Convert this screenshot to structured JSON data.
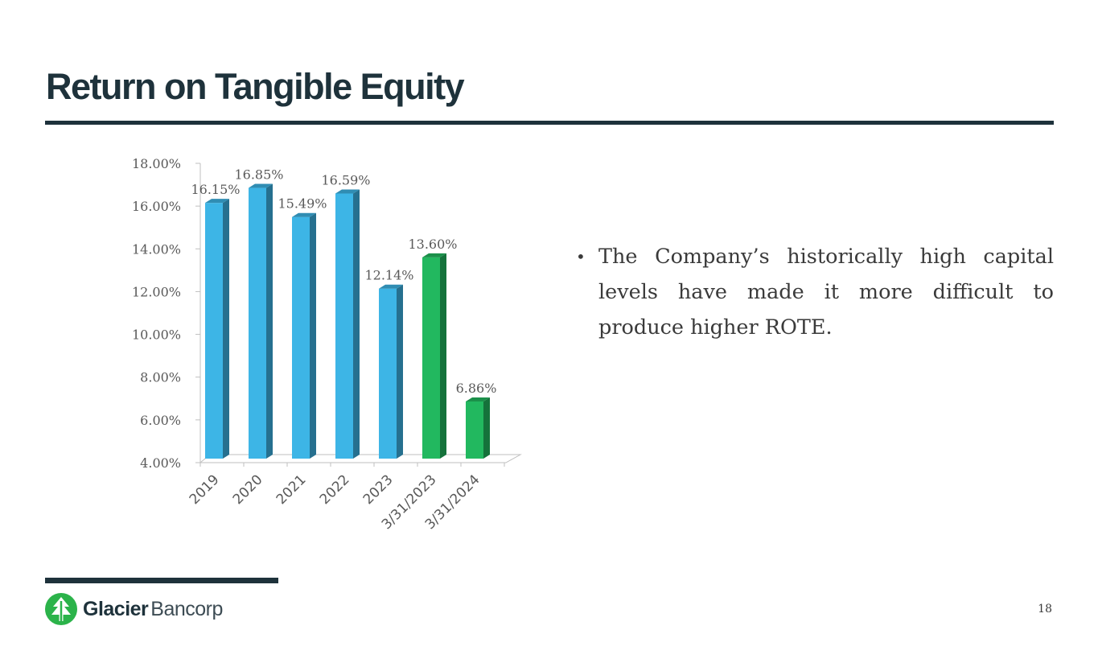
{
  "slide": {
    "title": "Return on Tangible Equity",
    "bullet": "The Company’s historically high capital levels have made it more difficult to produce higher ROTE.",
    "page_number": "18"
  },
  "logo": {
    "brand_bold": "Glacier",
    "brand_light": "Bancorp",
    "icon": "glacier-tree-logo-icon",
    "color": "#2bb34a"
  },
  "colors": {
    "title": "#1e323b",
    "bar_blue": "#3db5e6",
    "bar_green": "#22b85f",
    "text": "#3a3a3a"
  },
  "chart_data": {
    "type": "bar",
    "categories": [
      "2019",
      "2020",
      "2021",
      "2022",
      "2023",
      "3/31/2023",
      "3/31/2024"
    ],
    "values": [
      16.15,
      16.85,
      15.49,
      16.59,
      12.14,
      13.6,
      6.86
    ],
    "data_labels": [
      "16.15%",
      "16.85%",
      "15.49%",
      "16.59%",
      "12.14%",
      "13.60%",
      "6.86%"
    ],
    "bar_colors": [
      "blue",
      "blue",
      "blue",
      "blue",
      "blue",
      "green",
      "green"
    ],
    "ylim": [
      4,
      18
    ],
    "yticks": [
      4,
      6,
      8,
      10,
      12,
      14,
      16,
      18
    ],
    "ytick_labels": [
      "4.00%",
      "6.00%",
      "8.00%",
      "10.00%",
      "12.00%",
      "14.00%",
      "16.00%",
      "18.00%"
    ],
    "title": "",
    "xlabel": "",
    "ylabel": "",
    "grid": false,
    "style": "3d-column"
  }
}
